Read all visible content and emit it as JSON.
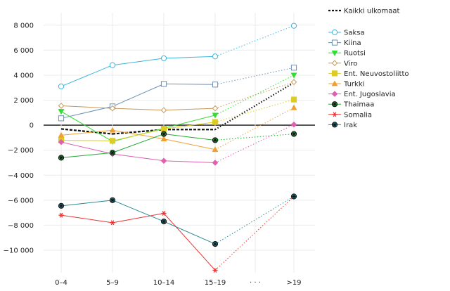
{
  "chart_data": {
    "type": "line",
    "categories": [
      "0–4",
      "5–9",
      "10–14",
      "15–19",
      "...",
      ">19"
    ],
    "x_skip_marker": "· · ·",
    "yticks": [
      8000,
      6000,
      4000,
      2000,
      0,
      -2000,
      -4000,
      -6000,
      -8000,
      -10000
    ],
    "ytick_labels": [
      "8 000",
      "6 000",
      "4 000",
      "2 000",
      "0",
      "−2 000",
      "−4 000",
      "−6 000",
      "−8 000",
      "−10 000"
    ],
    "ylim": [
      -11800,
      9000
    ],
    "grid": true,
    "legend_position": "right",
    "series": [
      {
        "name": "Kaikki ulkomaat",
        "color": "#111111",
        "style": "dashed",
        "marker": "none",
        "values": [
          -300,
          -700,
          -350,
          -350,
          null,
          3400
        ]
      },
      {
        "name": "Saksa",
        "color": "#3ab7e0",
        "marker": "circle-open",
        "values": [
          3100,
          4800,
          5350,
          5500,
          null,
          7950
        ]
      },
      {
        "name": "Kiina",
        "color": "#6d8fb3",
        "marker": "square-open",
        "values": [
          550,
          1500,
          3300,
          3250,
          null,
          4600
        ]
      },
      {
        "name": "Ruotsi",
        "color": "#33dd33",
        "marker": "triangle-down",
        "values": [
          1100,
          -1300,
          -250,
          800,
          null,
          4000
        ]
      },
      {
        "name": "Viro",
        "color": "#c8975a",
        "marker": "diamond-open",
        "values": [
          1550,
          1350,
          1200,
          1350,
          null,
          3450
        ]
      },
      {
        "name": "Ent. Neuvostoliitto",
        "color": "#ddcc22",
        "marker": "square-filled",
        "values": [
          -1200,
          -1250,
          -300,
          250,
          null,
          2050
        ]
      },
      {
        "name": "Turkki",
        "color": "#f0a030",
        "marker": "triangle-up",
        "values": [
          -800,
          -400,
          -1100,
          -1950,
          null,
          1400
        ]
      },
      {
        "name": "Ent. Jugoslavia",
        "color": "#e060b0",
        "marker": "diamond-filled",
        "values": [
          -1350,
          -2300,
          -2850,
          -3000,
          null,
          50
        ]
      },
      {
        "name": "Thaimaa",
        "color": "#22aa33",
        "marker": "circle-star",
        "values": [
          -2600,
          -2200,
          -700,
          -1200,
          null,
          -700
        ]
      },
      {
        "name": "Somalia",
        "color": "#ee3333",
        "marker": "asterisk",
        "values": [
          -7200,
          -7800,
          -7050,
          -11600,
          null,
          -5700
        ]
      },
      {
        "name": "Irak",
        "color": "#2a8a95",
        "marker": "circle-star",
        "values": [
          -6450,
          -6000,
          -7700,
          -9500,
          null,
          -5700
        ]
      }
    ]
  }
}
